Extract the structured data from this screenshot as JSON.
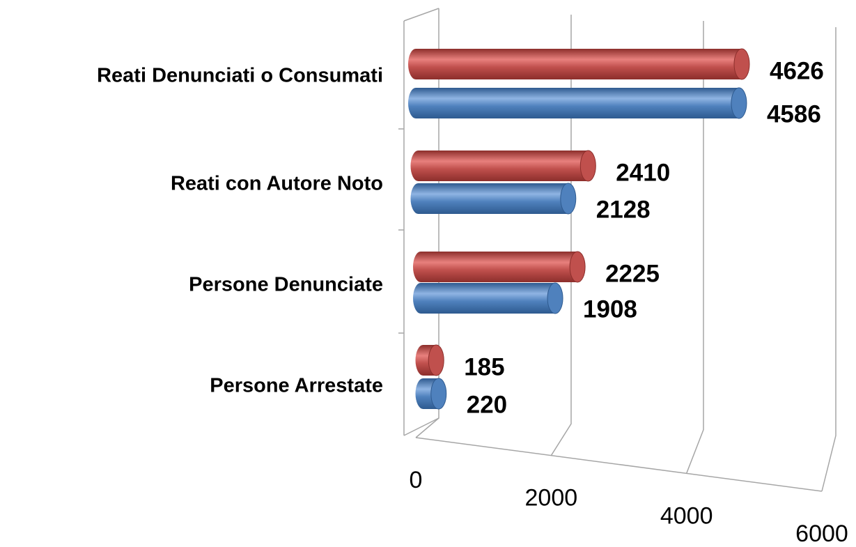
{
  "chart_data": {
    "type": "bar3d_horizontal",
    "categories": [
      "Reati Denunciati o Consumati",
      "Reati con Autore Noto",
      "Persone Denunciate",
      "Persone Arrestate"
    ],
    "series": [
      {
        "color": "#c0504d",
        "values": [
          4626,
          2410,
          2225,
          185
        ]
      },
      {
        "color": "#4f81bd",
        "values": [
          4586,
          2128,
          1908,
          220
        ]
      }
    ],
    "xlim": [
      0,
      6000
    ],
    "xticks": [
      0,
      2000,
      4000,
      6000
    ],
    "grid": true
  }
}
